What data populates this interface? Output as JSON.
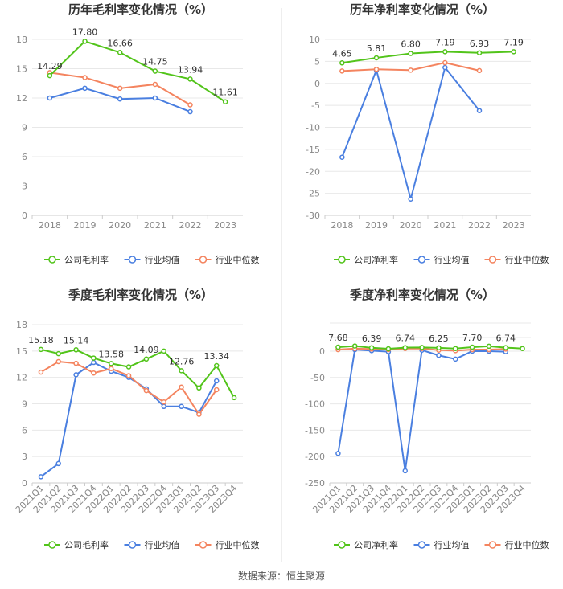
{
  "colors": {
    "company": "#52c41a",
    "industry_avg": "#4a7fe0",
    "industry_median": "#f4845f",
    "grid": "#e8e8e8",
    "axis_text": "#888888"
  },
  "footer": {
    "source": "数据来源：恒生聚源"
  },
  "chart_data": [
    {
      "type": "line",
      "title": "历年毛利率变化情况（%）",
      "categories": [
        "2018",
        "2019",
        "2020",
        "2021",
        "2022",
        "2023"
      ],
      "ylim": [
        0,
        18
      ],
      "yticks": [
        0,
        3,
        6,
        9,
        12,
        15,
        18
      ],
      "series": [
        {
          "name": "公司毛利率",
          "key": "company",
          "values": [
            14.29,
            17.8,
            16.66,
            14.75,
            13.94,
            11.61
          ],
          "labels": true
        },
        {
          "name": "行业均值",
          "key": "industry_avg",
          "values": [
            12.0,
            13.0,
            11.9,
            12.0,
            10.6,
            null
          ]
        },
        {
          "name": "行业中位数",
          "key": "industry_median",
          "values": [
            14.6,
            14.1,
            13.0,
            13.4,
            11.3,
            null
          ]
        }
      ]
    },
    {
      "type": "line",
      "title": "历年净利率变化情况（%）",
      "categories": [
        "2018",
        "2019",
        "2020",
        "2021",
        "2022",
        "2023"
      ],
      "ylim": [
        -30,
        10
      ],
      "yticks": [
        -30,
        -25,
        -20,
        -15,
        -10,
        -5,
        0,
        5,
        10
      ],
      "series": [
        {
          "name": "公司净利率",
          "key": "company",
          "values": [
            4.65,
            5.81,
            6.8,
            7.19,
            6.93,
            7.19
          ],
          "labels": true
        },
        {
          "name": "行业均值",
          "key": "industry_avg",
          "values": [
            -16.8,
            3.0,
            -26.3,
            3.6,
            -6.2,
            null
          ]
        },
        {
          "name": "行业中位数",
          "key": "industry_median",
          "values": [
            2.8,
            3.2,
            3.0,
            4.7,
            2.9,
            null
          ]
        }
      ]
    },
    {
      "type": "line",
      "title": "季度毛利率变化情况（%）",
      "categories": [
        "2021Q1",
        "2021Q2",
        "2021Q3",
        "2021Q4",
        "2022Q1",
        "2022Q2",
        "2022Q3",
        "2022Q4",
        "2023Q1",
        "2023Q2",
        "2023Q3",
        "2023Q4"
      ],
      "ylim": [
        0,
        18
      ],
      "yticks": [
        0,
        3,
        6,
        9,
        12,
        15,
        18
      ],
      "series": [
        {
          "name": "公司毛利率",
          "key": "company",
          "values": [
            15.18,
            14.7,
            15.14,
            14.2,
            13.58,
            13.2,
            14.09,
            15.0,
            12.76,
            10.8,
            13.34,
            9.7
          ],
          "label_values": [
            "15.18",
            null,
            "15.14",
            null,
            "13.58",
            null,
            "14.09",
            null,
            "12.76",
            null,
            "13.34",
            null
          ]
        },
        {
          "name": "行业均值",
          "key": "industry_avg",
          "values": [
            0.7,
            2.2,
            12.3,
            13.7,
            12.7,
            12.0,
            10.7,
            8.7,
            8.7,
            8.0,
            11.6,
            null
          ]
        },
        {
          "name": "行业中位数",
          "key": "industry_median",
          "values": [
            12.6,
            13.8,
            13.6,
            12.5,
            13.0,
            12.2,
            10.5,
            9.2,
            10.9,
            7.8,
            10.6,
            null
          ]
        }
      ]
    },
    {
      "type": "line",
      "title": "季度净利率变化情况（%）",
      "categories": [
        "2021Q1",
        "2021Q2",
        "2021Q3",
        "2021Q4",
        "2022Q1",
        "2022Q2",
        "2022Q3",
        "2022Q4",
        "2023Q1",
        "2023Q2",
        "2023Q3",
        "2023Q4"
      ],
      "ylim": [
        -250,
        0
      ],
      "yticks": [
        -250,
        -200,
        -150,
        -100,
        -50,
        0
      ],
      "series": [
        {
          "name": "公司净利率",
          "key": "company",
          "values": [
            7.68,
            9.8,
            6.39,
            4.5,
            6.74,
            7.1,
            6.25,
            5.0,
            7.7,
            9.4,
            6.74,
            5.0
          ],
          "label_values": [
            "7.68",
            null,
            "6.39",
            null,
            "6.74",
            null,
            "6.25",
            null,
            "7.70",
            null,
            "6.74",
            null
          ]
        },
        {
          "name": "行业均值",
          "key": "industry_avg",
          "values": [
            -194,
            3,
            1,
            -1,
            -227,
            2,
            -8,
            -15,
            0,
            0,
            -1,
            null
          ]
        },
        {
          "name": "行业中位数",
          "key": "industry_median",
          "values": [
            3,
            5,
            4,
            3,
            5,
            5,
            2,
            1,
            3,
            3,
            4,
            null
          ]
        }
      ]
    }
  ]
}
